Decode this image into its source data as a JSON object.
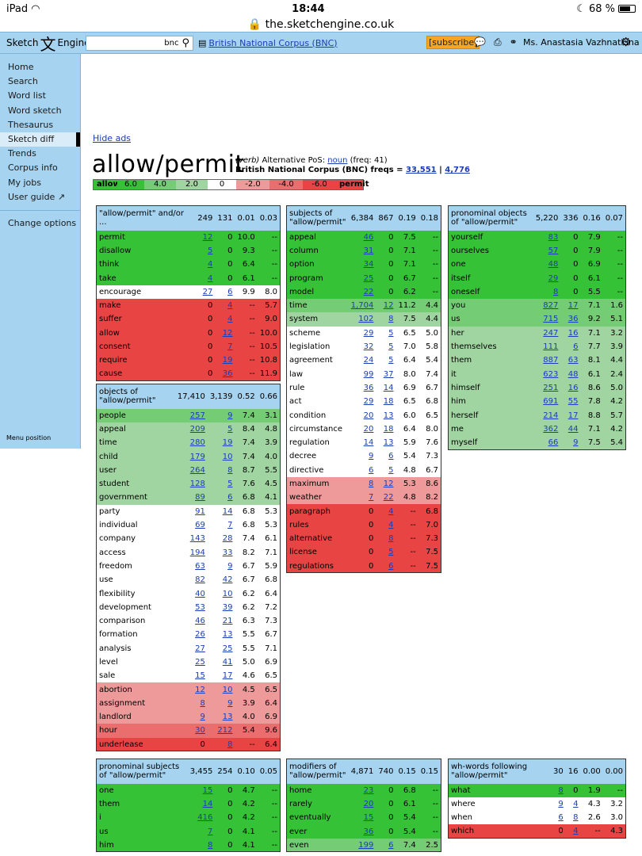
{
  "status": {
    "device": "iPad",
    "time": "18:44",
    "battery": "68 %"
  },
  "url": "the.sketchengine.co.uk",
  "app": {
    "logo_left": "Sketch",
    "logo_mark": "文",
    "logo_right": "Engine",
    "search_value": "bnc",
    "corpus": "British National Corpus (BNC)",
    "subscribe": "[subscribe]",
    "user": "Ms. Anastasia Vazhnatkina"
  },
  "sidebar": {
    "items": [
      "Home",
      "Search",
      "Word list",
      "Word sketch",
      "Thesaurus",
      "Sketch diff",
      "Trends",
      "Corpus info",
      "My jobs",
      "User guide"
    ],
    "change_options": "Change options",
    "menu_position": "Menu position"
  },
  "hide_ads": "Hide ads",
  "headword": {
    "title": "allow/permit",
    "pos": "(verb)",
    "alt": "Alternative PoS:",
    "alt_link": "noun",
    "alt_freq": "(freq: 41)",
    "freqs_label": "British National Corpus (BNC) freqs =",
    "freq1": "33,551",
    "sep": "|",
    "freq2": "4,776"
  },
  "scale": [
    "allow",
    "6.0",
    "4.0",
    "2.0",
    "0",
    "-2.0",
    "-4.0",
    "-6.0",
    "permit"
  ],
  "colors": {
    "c1": "#36c236",
    "c2": "#74cc74",
    "c3": "#a0d4a0",
    "c0": "#ffffff",
    "c4": "#ee9a9a",
    "c5": "#ea6e6e",
    "c6": "#e84444",
    "header": "#a6d3f0"
  },
  "tables": [
    {
      "title": "\"allow/permit\" and/or ...",
      "h": [
        "249",
        "131",
        "0.01",
        "0.03"
      ],
      "rows": [
        [
          "permit",
          "12",
          "0",
          "10.0",
          "--",
          "c1"
        ],
        [
          "disallow",
          "5",
          "0",
          "9.3",
          "--",
          "c1"
        ],
        [
          "think",
          "4",
          "0",
          "6.4",
          "--",
          "c1"
        ],
        [
          "take",
          "4",
          "0",
          "6.1",
          "--",
          "c1"
        ],
        [
          "encourage",
          "27",
          "6",
          "9.9",
          "8.0",
          "c0"
        ],
        [
          "make",
          "0",
          "4",
          "--",
          "5.7",
          "c6"
        ],
        [
          "suffer",
          "0",
          "4",
          "--",
          "9.0",
          "c6"
        ],
        [
          "allow",
          "0",
          "12",
          "--",
          "10.0",
          "c6"
        ],
        [
          "consent",
          "0",
          "7",
          "--",
          "10.5",
          "c6"
        ],
        [
          "require",
          "0",
          "19",
          "--",
          "10.8",
          "c6"
        ],
        [
          "cause",
          "0",
          "36",
          "--",
          "11.9",
          "c6"
        ]
      ]
    },
    {
      "title": "objects of \"allow/permit\"",
      "h": [
        "17,410",
        "3,139",
        "0.52",
        "0.66"
      ],
      "rows": [
        [
          "people",
          "257",
          "9",
          "7.4",
          "3.1",
          "c2"
        ],
        [
          "appeal",
          "209",
          "5",
          "8.4",
          "4.8",
          "c3"
        ],
        [
          "time",
          "280",
          "19",
          "7.4",
          "3.9",
          "c3"
        ],
        [
          "child",
          "179",
          "10",
          "7.4",
          "4.0",
          "c3"
        ],
        [
          "user",
          "264",
          "8",
          "8.7",
          "5.5",
          "c3"
        ],
        [
          "student",
          "128",
          "5",
          "7.6",
          "4.5",
          "c3"
        ],
        [
          "government",
          "89",
          "6",
          "6.8",
          "4.1",
          "c3"
        ],
        [
          "party",
          "91",
          "14",
          "6.8",
          "5.3",
          "c0"
        ],
        [
          "individual",
          "69",
          "7",
          "6.8",
          "5.3",
          "c0"
        ],
        [
          "company",
          "143",
          "28",
          "7.4",
          "6.1",
          "c0"
        ],
        [
          "access",
          "194",
          "33",
          "8.2",
          "7.1",
          "c0"
        ],
        [
          "freedom",
          "63",
          "9",
          "6.7",
          "5.9",
          "c0"
        ],
        [
          "use",
          "82",
          "42",
          "6.7",
          "6.8",
          "c0"
        ],
        [
          "flexibility",
          "40",
          "10",
          "6.2",
          "6.4",
          "c0"
        ],
        [
          "development",
          "53",
          "39",
          "6.2",
          "7.2",
          "c0"
        ],
        [
          "comparison",
          "46",
          "21",
          "6.3",
          "7.3",
          "c0"
        ],
        [
          "formation",
          "26",
          "13",
          "5.5",
          "6.7",
          "c0"
        ],
        [
          "analysis",
          "27",
          "25",
          "5.5",
          "7.1",
          "c0"
        ],
        [
          "level",
          "25",
          "41",
          "5.0",
          "6.9",
          "c0"
        ],
        [
          "sale",
          "15",
          "17",
          "4.6",
          "6.5",
          "c0"
        ],
        [
          "abortion",
          "12",
          "10",
          "4.5",
          "6.5",
          "c4"
        ],
        [
          "assignment",
          "8",
          "9",
          "3.9",
          "6.4",
          "c4"
        ],
        [
          "landlord",
          "9",
          "13",
          "4.0",
          "6.9",
          "c4"
        ],
        [
          "hour",
          "30",
          "212",
          "5.4",
          "9.6",
          "c5"
        ],
        [
          "underlease",
          "0",
          "8",
          "--",
          "6.4",
          "c6"
        ]
      ]
    },
    {
      "title": "pronominal subjects of \"allow/permit\"",
      "h": [
        "3,455",
        "254",
        "0.10",
        "0.05"
      ],
      "rows": [
        [
          "one",
          "15",
          "0",
          "4.7",
          "--",
          "c1"
        ],
        [
          "them",
          "14",
          "0",
          "4.2",
          "--",
          "c1"
        ],
        [
          "i",
          "416",
          "0",
          "4.2",
          "--",
          "c1"
        ],
        [
          "us",
          "7",
          "0",
          "4.1",
          "--",
          "c1"
        ],
        [
          "him",
          "8",
          "0",
          "4.1",
          "--",
          "c1"
        ]
      ]
    },
    {
      "title": "subjects of \"allow/permit\"",
      "h": [
        "6,384",
        "867",
        "0.19",
        "0.18"
      ],
      "rows": [
        [
          "appeal",
          "46",
          "0",
          "7.5",
          "--",
          "c1"
        ],
        [
          "column",
          "31",
          "0",
          "7.1",
          "--",
          "c1"
        ],
        [
          "option",
          "34",
          "0",
          "7.1",
          "--",
          "c1"
        ],
        [
          "program",
          "25",
          "0",
          "6.7",
          "--",
          "c1"
        ],
        [
          "model",
          "22",
          "0",
          "6.2",
          "--",
          "c1"
        ],
        [
          "time",
          "1,704",
          "12",
          "11.2",
          "4.4",
          "c2"
        ],
        [
          "system",
          "102",
          "8",
          "7.5",
          "4.4",
          "c3"
        ],
        [
          "scheme",
          "29",
          "5",
          "6.5",
          "5.0",
          "c0"
        ],
        [
          "legislation",
          "32",
          "5",
          "7.0",
          "5.8",
          "c0"
        ],
        [
          "agreement",
          "24",
          "5",
          "6.4",
          "5.4",
          "c0"
        ],
        [
          "law",
          "99",
          "37",
          "8.0",
          "7.4",
          "c0"
        ],
        [
          "rule",
          "36",
          "14",
          "6.9",
          "6.7",
          "c0"
        ],
        [
          "act",
          "29",
          "18",
          "6.5",
          "6.8",
          "c0"
        ],
        [
          "condition",
          "20",
          "13",
          "6.0",
          "6.5",
          "c0"
        ],
        [
          "circumstance",
          "20",
          "18",
          "6.4",
          "8.0",
          "c0"
        ],
        [
          "regulation",
          "14",
          "13",
          "5.9",
          "7.6",
          "c0"
        ],
        [
          "decree",
          "9",
          "6",
          "5.4",
          "7.3",
          "c0"
        ],
        [
          "directive",
          "6",
          "5",
          "4.8",
          "6.7",
          "c0"
        ],
        [
          "maximum",
          "8",
          "12",
          "5.3",
          "8.6",
          "c4"
        ],
        [
          "weather",
          "7",
          "22",
          "4.8",
          "8.2",
          "c4"
        ],
        [
          "paragraph",
          "0",
          "4",
          "--",
          "6.8",
          "c6"
        ],
        [
          "rules",
          "0",
          "4",
          "--",
          "7.0",
          "c6"
        ],
        [
          "alternative",
          "0",
          "8",
          "--",
          "7.3",
          "c6"
        ],
        [
          "license",
          "0",
          "5",
          "--",
          "7.5",
          "c6"
        ],
        [
          "regulations",
          "0",
          "6",
          "--",
          "7.5",
          "c6"
        ]
      ]
    },
    {
      "title": "modifiers of \"allow/permit\"",
      "h": [
        "4,871",
        "740",
        "0.15",
        "0.15"
      ],
      "rows": [
        [
          "home",
          "23",
          "0",
          "6.8",
          "--",
          "c1"
        ],
        [
          "rarely",
          "20",
          "0",
          "6.1",
          "--",
          "c1"
        ],
        [
          "eventually",
          "15",
          "0",
          "5.4",
          "--",
          "c1"
        ],
        [
          "ever",
          "36",
          "0",
          "5.4",
          "--",
          "c1"
        ],
        [
          "even",
          "199",
          "6",
          "7.4",
          "2.5",
          "c2"
        ]
      ]
    },
    {
      "title": "pronominal objects of \"allow/permit\"",
      "h": [
        "5,220",
        "336",
        "0.16",
        "0.07"
      ],
      "rows": [
        [
          "yourself",
          "83",
          "0",
          "7.9",
          "--",
          "c1"
        ],
        [
          "ourselves",
          "57",
          "0",
          "7.9",
          "--",
          "c1"
        ],
        [
          "one",
          "48",
          "0",
          "6.9",
          "--",
          "c1"
        ],
        [
          "itself",
          "29",
          "0",
          "6.1",
          "--",
          "c1"
        ],
        [
          "oneself",
          "8",
          "0",
          "5.5",
          "--",
          "c1"
        ],
        [
          "you",
          "827",
          "17",
          "7.1",
          "1.6",
          "c2"
        ],
        [
          "us",
          "715",
          "36",
          "9.2",
          "5.1",
          "c2"
        ],
        [
          "her",
          "247",
          "16",
          "7.1",
          "3.2",
          "c3"
        ],
        [
          "themselves",
          "111",
          "6",
          "7.7",
          "3.9",
          "c3"
        ],
        [
          "them",
          "887",
          "63",
          "8.1",
          "4.4",
          "c3"
        ],
        [
          "it",
          "623",
          "48",
          "6.1",
          "2.4",
          "c3"
        ],
        [
          "himself",
          "251",
          "16",
          "8.6",
          "5.0",
          "c3"
        ],
        [
          "him",
          "691",
          "55",
          "7.8",
          "4.2",
          "c3"
        ],
        [
          "herself",
          "214",
          "17",
          "8.8",
          "5.7",
          "c3"
        ],
        [
          "me",
          "362",
          "44",
          "7.1",
          "4.2",
          "c3"
        ],
        [
          "myself",
          "66",
          "9",
          "7.5",
          "5.4",
          "c3"
        ]
      ]
    },
    {
      "title": "wh-words following \"allow/permit\"",
      "h": [
        "30",
        "16",
        "0.00",
        "0.00"
      ],
      "rows": [
        [
          "what",
          "8",
          "0",
          "1.9",
          "--",
          "c1"
        ],
        [
          "where",
          "9",
          "4",
          "4.3",
          "3.2",
          "c0"
        ],
        [
          "when",
          "6",
          "8",
          "2.6",
          "3.0",
          "c0"
        ],
        [
          "which",
          "0",
          "4",
          "--",
          "4.3",
          "c6"
        ]
      ]
    }
  ]
}
